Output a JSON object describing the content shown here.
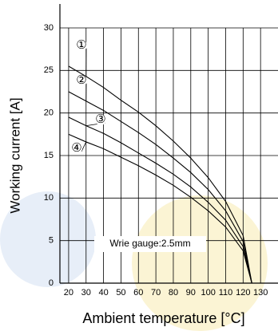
{
  "chart_data": {
    "type": "line",
    "x_label": "Ambient temperature [°C]",
    "y_label": "Working current [A]",
    "annotation": "Wrie gauge:2.5mm",
    "x": [
      20,
      30,
      40,
      50,
      60,
      70,
      80,
      90,
      100,
      110,
      120,
      125
    ],
    "series": [
      {
        "name": "①",
        "color": "#000000",
        "values": [
          25.5,
          24.3,
          23.0,
          21.5,
          20.1,
          18.5,
          16.7,
          14.7,
          12.4,
          9.6,
          5.6,
          0
        ]
      },
      {
        "name": "②",
        "color": "#000000",
        "values": [
          22.5,
          21.4,
          20.3,
          19.0,
          17.7,
          16.3,
          14.7,
          13.0,
          11.0,
          8.5,
          4.9,
          0
        ]
      },
      {
        "name": "③",
        "color": "#000000",
        "values": [
          19.5,
          18.5,
          17.6,
          16.5,
          15.3,
          14.1,
          12.8,
          11.3,
          9.5,
          7.4,
          4.3,
          0
        ]
      },
      {
        "name": "④",
        "color": "#000000",
        "values": [
          17.5,
          16.6,
          15.8,
          14.8,
          13.8,
          12.7,
          11.5,
          10.1,
          8.5,
          6.6,
          3.8,
          0
        ]
      }
    ],
    "xlim": [
      15,
      140
    ],
    "ylim": [
      0,
      30
    ],
    "xticks": [
      20,
      30,
      40,
      50,
      60,
      70,
      80,
      90,
      100,
      110,
      120,
      130
    ],
    "yticks": [
      0,
      5,
      10,
      15,
      20,
      25,
      30
    ],
    "grid": true
  }
}
